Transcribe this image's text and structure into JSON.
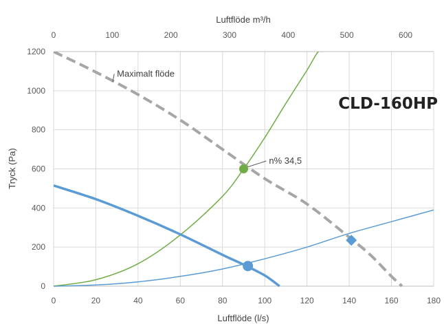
{
  "chart_data": {
    "type": "line",
    "title": "CLD-160HP",
    "xlabel": "Luftflöde (l/s)",
    "ylabel": "Tryck (Pa)",
    "x2label": "Luftflöde m³/h",
    "xlim": [
      0,
      180
    ],
    "ylim": [
      0,
      1200
    ],
    "x2lim": [
      0,
      648
    ],
    "x_ticks": [
      "0",
      "20",
      "40",
      "60",
      "80",
      "100",
      "120",
      "140",
      "160",
      "180"
    ],
    "y_ticks": [
      "0",
      "200",
      "400",
      "600",
      "800",
      "1000",
      "1200"
    ],
    "x2_ticks": [
      "0",
      "100",
      "200",
      "300",
      "400",
      "500",
      "600"
    ],
    "grid": true,
    "series": [
      {
        "name": "Maximalt flöde",
        "style": "dashed",
        "color": "#a6a6a6",
        "x": [
          0,
          20,
          40,
          60,
          80,
          100,
          120,
          140,
          150,
          160,
          165
        ],
        "y": [
          1200,
          1095,
          980,
          850,
          700,
          550,
          420,
          250,
          160,
          50,
          0
        ]
      },
      {
        "style": "solid",
        "color": "#70ad47",
        "x": [
          0,
          20,
          40,
          60,
          80,
          90,
          100,
          110,
          120,
          125,
          127
        ],
        "y": [
          0,
          33,
          115,
          262,
          460,
          600,
          760,
          935,
          1105,
          1195,
          1200
        ]
      },
      {
        "style": "solid",
        "color": "#5b9bd5",
        "x": [
          0,
          20,
          40,
          60,
          80,
          100,
          120,
          140,
          160,
          180
        ],
        "y": [
          0,
          6,
          22,
          50,
          88,
          140,
          200,
          270,
          330,
          390
        ]
      },
      {
        "style": "thick",
        "color": "#5b9bd5",
        "x": [
          0,
          20,
          40,
          60,
          80,
          90,
          100,
          107
        ],
        "y": [
          515,
          445,
          360,
          265,
          160,
          110,
          55,
          0
        ]
      }
    ],
    "points": [
      {
        "x": 90,
        "y": 600,
        "shape": "circle",
        "color": "#70ad47"
      },
      {
        "x": 92,
        "y": 103,
        "shape": "circle",
        "color": "#5b9bd5"
      },
      {
        "x": 141,
        "y": 235,
        "shape": "diamond",
        "color": "#5b9bd5"
      }
    ],
    "annotations": [
      {
        "text": "Maximalt flöde",
        "x": 30,
        "y": 1075,
        "points_to": {
          "x": 28,
          "y": 1045
        }
      },
      {
        "text": "n% 34,5",
        "x": 102,
        "y": 630,
        "points_to": {
          "x": 92,
          "y": 610
        }
      }
    ]
  }
}
